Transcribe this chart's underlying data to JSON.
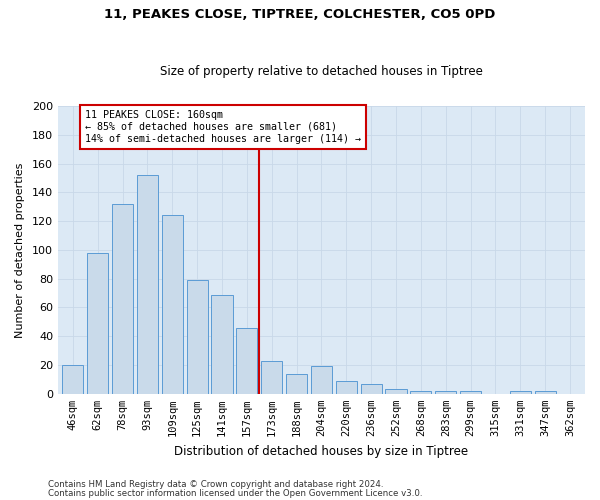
{
  "title": "11, PEAKES CLOSE, TIPTREE, COLCHESTER, CO5 0PD",
  "subtitle": "Size of property relative to detached houses in Tiptree",
  "xlabel": "Distribution of detached houses by size in Tiptree",
  "ylabel": "Number of detached properties",
  "categories": [
    "46sqm",
    "62sqm",
    "78sqm",
    "93sqm",
    "109sqm",
    "125sqm",
    "141sqm",
    "157sqm",
    "173sqm",
    "188sqm",
    "204sqm",
    "220sqm",
    "236sqm",
    "252sqm",
    "268sqm",
    "283sqm",
    "299sqm",
    "315sqm",
    "331sqm",
    "347sqm",
    "362sqm"
  ],
  "values": [
    20,
    98,
    132,
    152,
    124,
    79,
    69,
    46,
    23,
    14,
    19,
    9,
    7,
    3,
    2,
    2,
    2,
    0,
    2,
    2,
    0
  ],
  "bar_color": "#c9daea",
  "bar_edge_color": "#5b9bd5",
  "property_line_x": 7.5,
  "property_label": "11 PEAKES CLOSE: 160sqm",
  "pct_smaller_text": "← 85% of detached houses are smaller (681)",
  "pct_larger_text": "14% of semi-detached houses are larger (114) →",
  "annotation_box_color": "#cc0000",
  "vline_color": "#cc0000",
  "ylim": [
    0,
    200
  ],
  "yticks": [
    0,
    20,
    40,
    60,
    80,
    100,
    120,
    140,
    160,
    180,
    200
  ],
  "grid_color": "#c8d8e8",
  "background_color": "#ffffff",
  "axes_bg_color": "#dce9f5",
  "footer1": "Contains HM Land Registry data © Crown copyright and database right 2024.",
  "footer2": "Contains public sector information licensed under the Open Government Licence v3.0."
}
